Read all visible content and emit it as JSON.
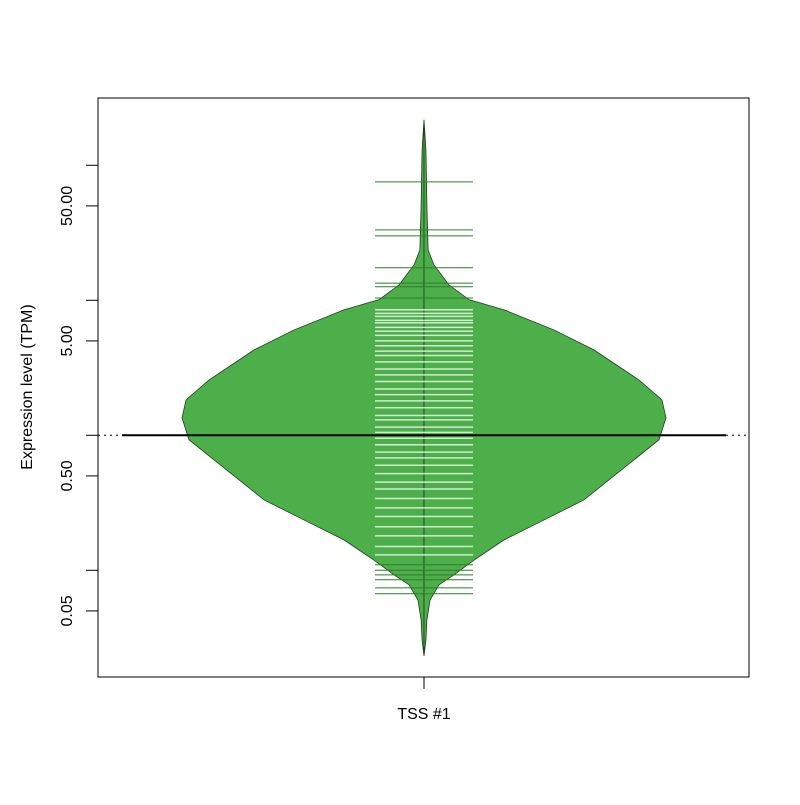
{
  "chart_data": {
    "type": "beanplot",
    "ylabel": "Expression level (TPM)",
    "categories": [
      "TSS #1"
    ],
    "log_y": true,
    "ylim": [
      0.0162,
      315
    ],
    "yticks": [
      {
        "value": 0.05,
        "label": "0.05"
      },
      {
        "value": 0.1,
        "label": null
      },
      {
        "value": 0.5,
        "label": "0.50"
      },
      {
        "value": 1,
        "label": null
      },
      {
        "value": 5,
        "label": "5.00"
      },
      {
        "value": 10,
        "label": null
      },
      {
        "value": 50,
        "label": "50.00"
      },
      {
        "value": 100,
        "label": null
      }
    ],
    "color": "#4daf4a",
    "border_color": "#1e3d1c",
    "beanline_color": "#ffffff",
    "outlier_line_color": "#2e7d2b",
    "median": 1.0,
    "density": {
      "values": [
        0.0232,
        0.0305,
        0.0429,
        0.0603,
        0.078,
        0.0925,
        0.119,
        0.168,
        0.236,
        0.332,
        0.467,
        0.658,
        0.925,
        1.35,
        1.83,
        2.57,
        4.29,
        6.03,
        8.49,
        10.1,
        13.0,
        18.3,
        23.6,
        50,
        130,
        217
      ],
      "density": [
        0,
        0.008,
        0.012,
        0.025,
        0.062,
        0.124,
        0.207,
        0.331,
        0.496,
        0.661,
        0.764,
        0.868,
        0.971,
        1,
        0.983,
        0.888,
        0.702,
        0.537,
        0.331,
        0.186,
        0.103,
        0.041,
        0.017,
        0.012,
        0.008,
        0
      ]
    },
    "observations": [
      75.3,
      33.2,
      30.0,
      17.4,
      13.4,
      12.6,
      10.4,
      8.5,
      8.0,
      7.6,
      7.1,
      6.8,
      6.3,
      5.9,
      5.5,
      5.0,
      4.6,
      4.2,
      3.9,
      3.5,
      3.1,
      2.8,
      2.5,
      2.2,
      2.0,
      1.8,
      1.6,
      1.4,
      1.3,
      1.15,
      1.05,
      0.95,
      0.85,
      0.75,
      0.68,
      0.6,
      0.52,
      0.45,
      0.4,
      0.34,
      0.29,
      0.25,
      0.21,
      0.18,
      0.15,
      0.13,
      0.11,
      0.1,
      0.0925,
      0.085,
      0.074,
      0.067
    ]
  }
}
